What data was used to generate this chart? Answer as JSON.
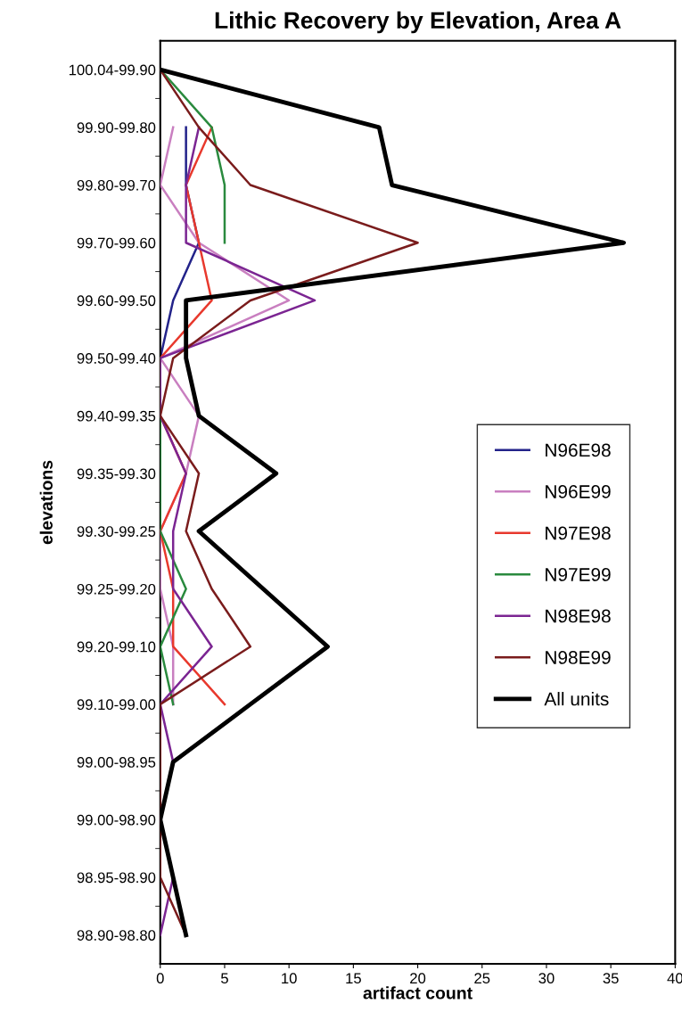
{
  "chart_data": {
    "type": "line",
    "orientation": "horizontal",
    "title": "Lithic Recovery by Elevation, Area A",
    "xlabel": "artifact count",
    "ylabel": "elevations",
    "categories": [
      "100.04-99.90",
      "99.90-99.80",
      "99.80-99.70",
      "99.70-99.60",
      "99.60-99.50",
      "99.50-99.40",
      "99.40-99.35",
      "99.35-99.30",
      "99.30-99.25",
      "99.25-99.20",
      "99.20-99.10",
      "99.10-99.00",
      "99.00-98.95",
      "99.00-98.90",
      "98.95-98.90",
      "98.90-98.80"
    ],
    "xlim": [
      0,
      40
    ],
    "xticks": [
      0,
      5,
      10,
      15,
      20,
      25,
      30,
      35,
      40
    ],
    "grid": false,
    "legend": "right",
    "marker": "none",
    "line_style": "solid",
    "series": [
      {
        "name": "N96E98",
        "color": "#23238a",
        "values": [
          null,
          2,
          2,
          3,
          1,
          0,
          null,
          null,
          null,
          null,
          null,
          null,
          null,
          null,
          null,
          null
        ]
      },
      {
        "name": "N96E99",
        "color": "#c97fc0",
        "values": [
          null,
          1,
          0,
          3,
          10,
          0,
          3,
          2,
          0,
          0,
          1,
          1,
          null,
          null,
          null,
          null
        ]
      },
      {
        "name": "N97E98",
        "color": "#e8392d",
        "values": [
          null,
          4,
          2,
          3,
          4,
          0,
          0,
          2,
          0,
          1,
          1,
          5,
          null,
          null,
          null,
          null
        ]
      },
      {
        "name": "N97E99",
        "color": "#2a8a3e",
        "values": [
          0,
          4,
          5,
          5,
          null,
          0,
          0,
          0,
          0,
          2,
          0,
          1,
          null,
          null,
          null,
          null
        ]
      },
      {
        "name": "N98E98",
        "color": "#7b2592",
        "values": [
          null,
          3,
          2,
          2,
          12,
          0,
          0,
          2,
          1,
          1,
          4,
          0,
          1,
          0,
          1,
          0
        ]
      },
      {
        "name": "N98E99",
        "color": "#7a1c1c",
        "values": [
          0,
          3,
          7,
          20,
          7,
          1,
          0,
          3,
          2,
          4,
          7,
          0,
          0,
          0,
          0,
          2
        ]
      },
      {
        "name": "All units",
        "color": "#000000",
        "values": [
          0,
          17,
          18,
          36,
          2,
          2,
          3,
          9,
          3,
          8,
          13,
          7,
          1,
          0,
          1,
          2
        ]
      }
    ]
  }
}
